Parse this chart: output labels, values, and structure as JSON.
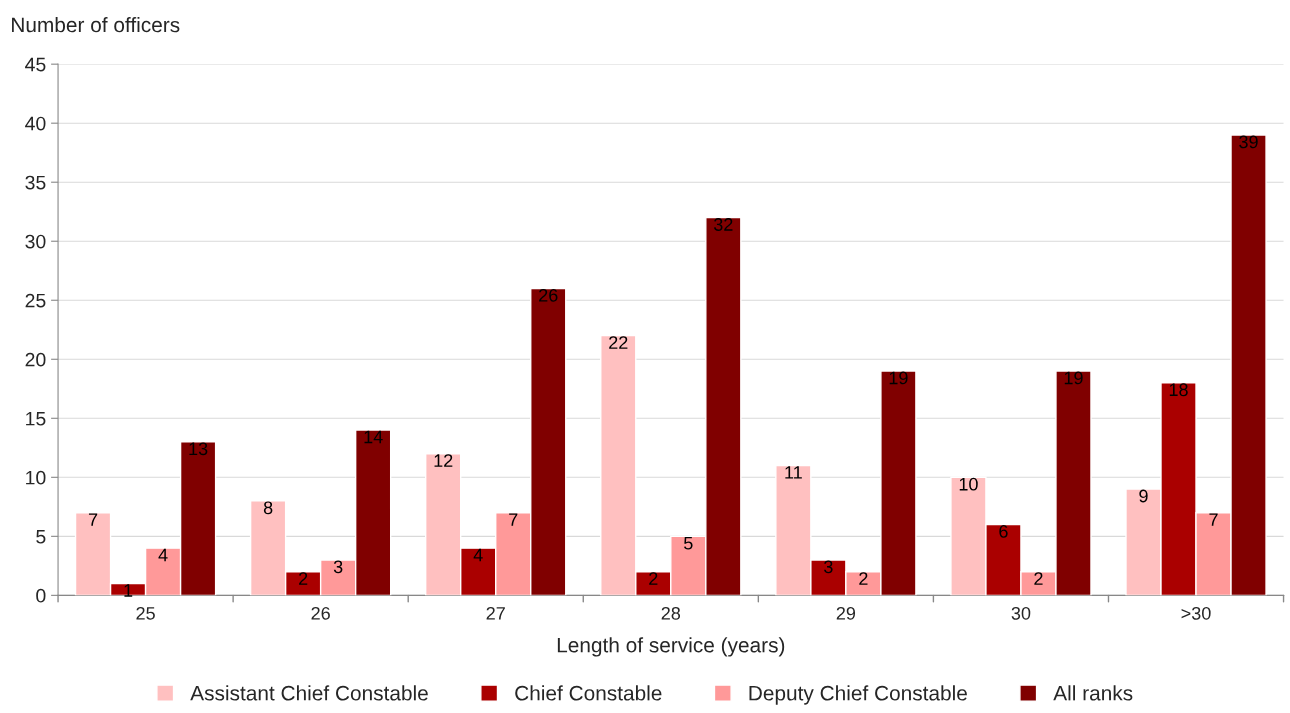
{
  "chart_data": {
    "type": "bar",
    "ylabel": "Number of officers",
    "xlabel": "Length of service (years)",
    "categories": [
      "25",
      "26",
      "27",
      "28",
      "29",
      "30",
      ">30"
    ],
    "series": [
      {
        "name": "Assistant Chief Constable",
        "color": "#ffc0c0",
        "values": [
          7,
          8,
          12,
          22,
          11,
          10,
          9
        ]
      },
      {
        "name": "Chief Constable",
        "color": "#aa0000",
        "values": [
          1,
          2,
          4,
          2,
          3,
          6,
          18
        ]
      },
      {
        "name": "Deputy Chief Constable",
        "color": "#ff9999",
        "values": [
          4,
          3,
          7,
          5,
          2,
          2,
          7
        ]
      },
      {
        "name": "All ranks",
        "color": "#800000",
        "values": [
          13,
          14,
          26,
          32,
          19,
          19,
          39
        ]
      }
    ],
    "ylim": [
      0,
      45
    ],
    "yticks": [
      0,
      5,
      10,
      15,
      20,
      25,
      30,
      35,
      40,
      45
    ],
    "grid": "y",
    "legend": "bottom",
    "data_labels": true
  }
}
